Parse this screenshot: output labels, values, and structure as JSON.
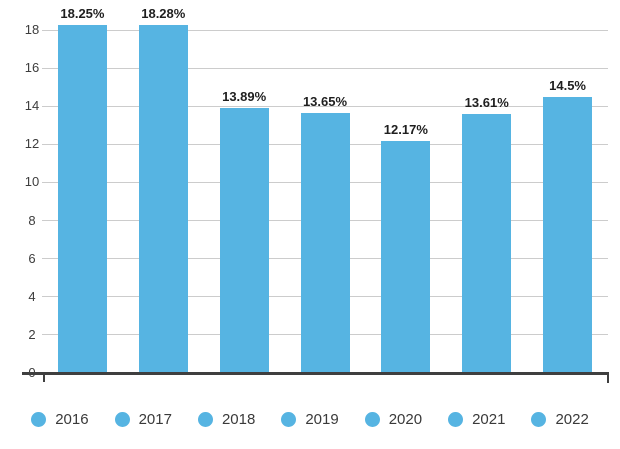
{
  "chart_data": {
    "type": "bar",
    "title": "",
    "xlabel": "",
    "ylabel": "",
    "categories": [
      "2016",
      "2017",
      "2018",
      "2019",
      "2020",
      "2021",
      "2022"
    ],
    "values": [
      18.25,
      18.28,
      13.89,
      13.65,
      12.17,
      13.61,
      14.5
    ],
    "value_labels": [
      "18.25%",
      "18.28%",
      "13.89%",
      "13.65%",
      "12.17%",
      "13.61%",
      "14.5%"
    ],
    "ylim": [
      0,
      18
    ],
    "yticks": [
      0,
      2,
      4,
      6,
      8,
      10,
      12,
      14,
      16,
      18
    ],
    "grid": "horizontal",
    "legend_position": "bottom",
    "colors": {
      "bar": "#56b4e2",
      "axis": "#3f3f3f",
      "gridline": "#cccccc",
      "value_label": "#1f1f1f",
      "tick_label": "#3d3d3d",
      "legend_label": "#3a3a3a"
    }
  }
}
